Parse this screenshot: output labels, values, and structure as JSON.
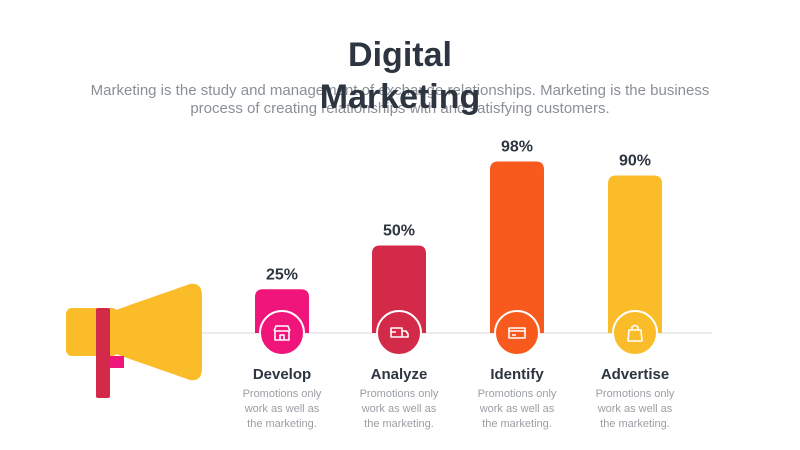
{
  "chart_data": {
    "type": "bar",
    "title": "Digital Marketing",
    "subtitle": "Marketing is the study and management of exchange relationships. Marketing is the business process of creating relationships with and satisfying customers.",
    "categories": [
      "Develop",
      "Analyze",
      "Identify",
      "Advertise"
    ],
    "values": [
      25,
      50,
      98,
      90
    ],
    "value_labels": [
      "25%",
      "50%",
      "98%",
      "90%"
    ],
    "colors": [
      "#f0157a",
      "#d42a4a",
      "#f85a1e",
      "#fbbc2a"
    ],
    "annotations": [
      "Promotions only work as well as the marketing.",
      "Promotions only work as well as the marketing.",
      "Promotions only work as well as the marketing.",
      "Promotions only work as well as the marketing."
    ]
  }
}
